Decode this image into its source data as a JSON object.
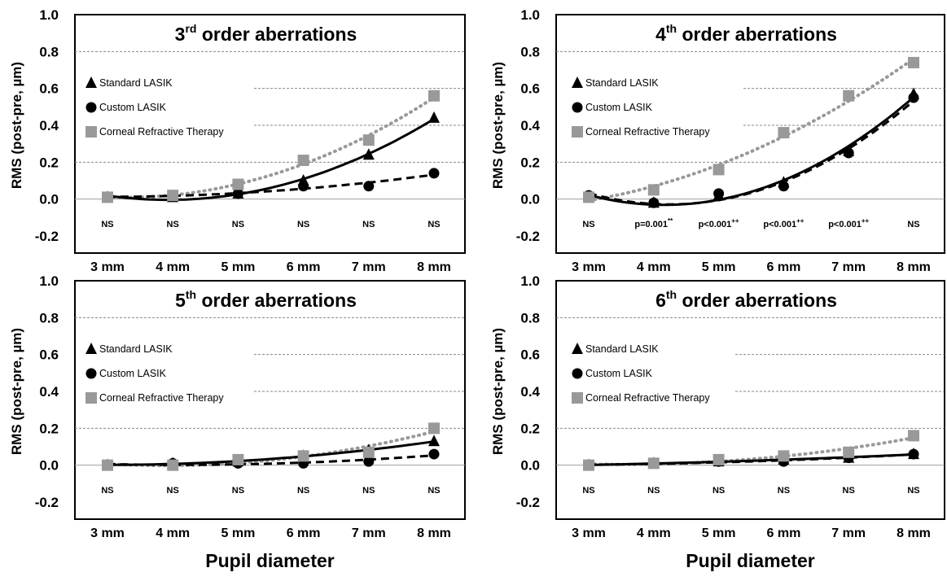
{
  "colors": {
    "standard": "#000000",
    "custom": "#000000",
    "crt": "#999999",
    "grid": "#888888"
  },
  "chart_data": [
    {
      "type": "line",
      "title": "3rd order aberrations",
      "title_main": "3",
      "title_sup": "rd",
      "title_rest": " order aberrations",
      "ylabel": "RMS (post-pre, µm)",
      "xlabel": "",
      "categories": [
        "3 mm",
        "4 mm",
        "5 mm",
        "6 mm",
        "7 mm",
        "8 mm"
      ],
      "y_ticks": [
        "1.0",
        "0.8",
        "0.6",
        "0.4",
        "0.2",
        "0.0",
        "-0.2"
      ],
      "ylim": [
        -0.2,
        1.0
      ],
      "grid": "horizontal dashed",
      "legend_position": "left",
      "significance": [
        "NS",
        "NS",
        "NS",
        "NS",
        "NS",
        "NS"
      ],
      "significance_sup": [
        "",
        "",
        "",
        "",
        "",
        ""
      ],
      "series": [
        {
          "name": "Standard LASIK",
          "marker": "triangle",
          "line": "solid",
          "values": [
            0.01,
            0.01,
            0.03,
            0.1,
            0.24,
            0.44
          ]
        },
        {
          "name": "Custom LASIK",
          "marker": "circle",
          "line": "dashed",
          "values": [
            0.01,
            0.02,
            0.03,
            0.07,
            0.07,
            0.14
          ]
        },
        {
          "name": "Corneal Refractive Therapy",
          "marker": "square",
          "line": "dotted",
          "values": [
            0.01,
            0.02,
            0.08,
            0.21,
            0.32,
            0.56
          ]
        }
      ]
    },
    {
      "type": "line",
      "title": "4th order aberrations",
      "title_main": "4",
      "title_sup": "th",
      "title_rest": " order aberrations",
      "ylabel": "RMS (post-pre, µm)",
      "xlabel": "",
      "categories": [
        "3 mm",
        "4 mm",
        "5 mm",
        "6 mm",
        "7 mm",
        "8 mm"
      ],
      "y_ticks": [
        "1.0",
        "0.8",
        "0.6",
        "0.4",
        "0.2",
        "0.0",
        "-0.2"
      ],
      "ylim": [
        -0.2,
        1.0
      ],
      "grid": "horizontal dashed",
      "legend_position": "right",
      "significance": [
        "NS",
        "p=0.001",
        "p<0.001",
        "p<0.001",
        "p<0.001",
        "NS"
      ],
      "significance_sup": [
        "",
        "**",
        "++",
        "++",
        "++",
        ""
      ],
      "series": [
        {
          "name": "Standard LASIK",
          "marker": "triangle",
          "line": "solid",
          "values": [
            0.01,
            -0.02,
            0.02,
            0.09,
            0.26,
            0.57
          ]
        },
        {
          "name": "Custom LASIK",
          "marker": "circle",
          "line": "dashed",
          "values": [
            0.02,
            -0.02,
            0.03,
            0.07,
            0.25,
            0.55
          ]
        },
        {
          "name": "Corneal Refractive Therapy",
          "marker": "square",
          "line": "dotted",
          "values": [
            0.01,
            0.05,
            0.16,
            0.36,
            0.56,
            0.74
          ]
        }
      ]
    },
    {
      "type": "line",
      "title": "5th order aberrations",
      "title_main": "5",
      "title_sup": "th",
      "title_rest": " order aberrations",
      "ylabel": "RMS (post-pre, µm)",
      "xlabel": "Pupil diameter",
      "categories": [
        "3 mm",
        "4 mm",
        "5 mm",
        "6 mm",
        "7 mm",
        "8 mm"
      ],
      "y_ticks": [
        "1.0",
        "0.8",
        "0.6",
        "0.4",
        "0.2",
        "0.0",
        "-0.2"
      ],
      "ylim": [
        -0.2,
        1.0
      ],
      "grid": "horizontal dashed",
      "legend_position": "left",
      "significance": [
        "NS",
        "NS",
        "NS",
        "NS",
        "NS",
        "NS"
      ],
      "significance_sup": [
        "",
        "",
        "",
        "",
        "",
        ""
      ],
      "series": [
        {
          "name": "Standard LASIK",
          "marker": "triangle",
          "line": "solid",
          "values": [
            0.0,
            0.01,
            0.02,
            0.05,
            0.08,
            0.13
          ]
        },
        {
          "name": "Custom LASIK",
          "marker": "circle",
          "line": "dashed",
          "values": [
            0.0,
            0.01,
            0.01,
            0.01,
            0.02,
            0.06
          ]
        },
        {
          "name": "Corneal Refractive Therapy",
          "marker": "square",
          "line": "dotted",
          "values": [
            0.0,
            0.0,
            0.03,
            0.05,
            0.07,
            0.2
          ]
        }
      ]
    },
    {
      "type": "line",
      "title": "6th order aberrations",
      "title_main": "6",
      "title_sup": "th",
      "title_rest": " order aberrations",
      "ylabel": "RMS (post-pre, µm)",
      "xlabel": "Pupil diameter",
      "categories": [
        "3 mm",
        "4 mm",
        "5 mm",
        "6 mm",
        "7 mm",
        "8 mm"
      ],
      "y_ticks": [
        "1.0",
        "0.8",
        "0.6",
        "0.4",
        "0.2",
        "0.0",
        "-0.2"
      ],
      "ylim": [
        -0.2,
        1.0
      ],
      "grid": "horizontal dashed",
      "legend_position": "right",
      "significance": [
        "NS",
        "NS",
        "NS",
        "NS",
        "NS",
        "NS"
      ],
      "significance_sup": [
        "",
        "",
        "",
        "",
        "",
        ""
      ],
      "series": [
        {
          "name": "Standard LASIK",
          "marker": "triangle",
          "line": "solid",
          "values": [
            0.0,
            0.01,
            0.02,
            0.03,
            0.04,
            0.06
          ]
        },
        {
          "name": "Custom LASIK",
          "marker": "circle",
          "line": "dashed",
          "values": [
            0.0,
            0.01,
            0.02,
            0.02,
            0.04,
            0.06
          ]
        },
        {
          "name": "Corneal Refractive Therapy",
          "marker": "square",
          "line": "dotted",
          "values": [
            0.0,
            0.01,
            0.03,
            0.05,
            0.07,
            0.16
          ]
        }
      ]
    }
  ]
}
